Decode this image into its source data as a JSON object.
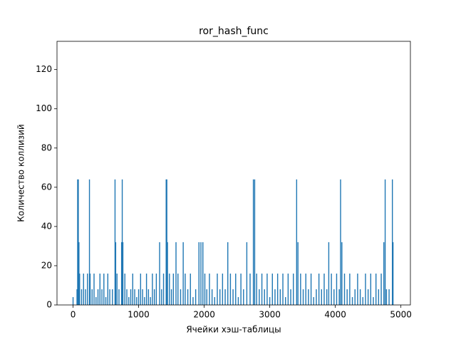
{
  "chart_data": {
    "type": "bar",
    "title": "ror_hash_func",
    "xlabel": "Ячейки хэш-таблицы",
    "ylabel": "Количество коллизий",
    "color": "#1f77b4",
    "x": [
      0,
      60,
      70,
      80,
      90,
      100,
      130,
      160,
      190,
      220,
      250,
      260,
      290,
      320,
      350,
      380,
      410,
      440,
      470,
      500,
      530,
      560,
      600,
      640,
      650,
      670,
      700,
      740,
      750,
      760,
      790,
      820,
      850,
      880,
      910,
      940,
      970,
      1000,
      1030,
      1060,
      1090,
      1120,
      1150,
      1180,
      1210,
      1240,
      1270,
      1320,
      1350,
      1380,
      1420,
      1430,
      1440,
      1470,
      1500,
      1530,
      1570,
      1600,
      1640,
      1680,
      1710,
      1750,
      1790,
      1830,
      1870,
      1920,
      1950,
      1980,
      2010,
      2040,
      2080,
      2120,
      2160,
      2200,
      2240,
      2280,
      2320,
      2360,
      2400,
      2440,
      2480,
      2520,
      2560,
      2600,
      2650,
      2700,
      2750,
      2770,
      2800,
      2840,
      2880,
      2920,
      2960,
      3000,
      3040,
      3080,
      3120,
      3160,
      3200,
      3240,
      3280,
      3320,
      3360,
      3410,
      3430,
      3470,
      3510,
      3550,
      3590,
      3630,
      3670,
      3710,
      3750,
      3790,
      3830,
      3870,
      3900,
      3940,
      3980,
      4020,
      4060,
      4080,
      4100,
      4140,
      4180,
      4220,
      4260,
      4300,
      4340,
      4380,
      4420,
      4460,
      4500,
      4540,
      4580,
      4620,
      4660,
      4700,
      4740,
      4760,
      4780,
      4820,
      4870,
      4880
    ],
    "values": [
      4,
      8,
      64,
      64,
      32,
      16,
      8,
      16,
      8,
      16,
      64,
      16,
      8,
      16,
      4,
      8,
      16,
      8,
      16,
      4,
      16,
      8,
      8,
      64,
      32,
      16,
      8,
      32,
      64,
      32,
      16,
      8,
      4,
      8,
      16,
      8,
      4,
      8,
      16,
      8,
      4,
      16,
      8,
      4,
      16,
      8,
      16,
      32,
      8,
      16,
      64,
      64,
      32,
      16,
      8,
      16,
      32,
      16,
      8,
      32,
      16,
      8,
      16,
      4,
      8,
      32,
      32,
      32,
      16,
      8,
      16,
      8,
      4,
      16,
      8,
      16,
      8,
      32,
      16,
      8,
      16,
      4,
      16,
      8,
      32,
      16,
      64,
      64,
      16,
      8,
      16,
      8,
      16,
      4,
      16,
      8,
      16,
      8,
      16,
      4,
      16,
      8,
      16,
      64,
      32,
      16,
      8,
      16,
      8,
      16,
      4,
      8,
      16,
      8,
      16,
      8,
      32,
      16,
      8,
      16,
      8,
      64,
      32,
      16,
      8,
      16,
      4,
      8,
      16,
      8,
      4,
      16,
      8,
      16,
      4,
      16,
      8,
      16,
      32,
      64,
      8,
      8,
      64,
      32
    ],
    "xlim": [
      -245,
      5145
    ],
    "ylim": [
      0,
      134.4
    ],
    "xticks": [
      0,
      1000,
      2000,
      3000,
      4000,
      5000
    ],
    "yticks": [
      0,
      20,
      40,
      60,
      80,
      100,
      120
    ]
  }
}
